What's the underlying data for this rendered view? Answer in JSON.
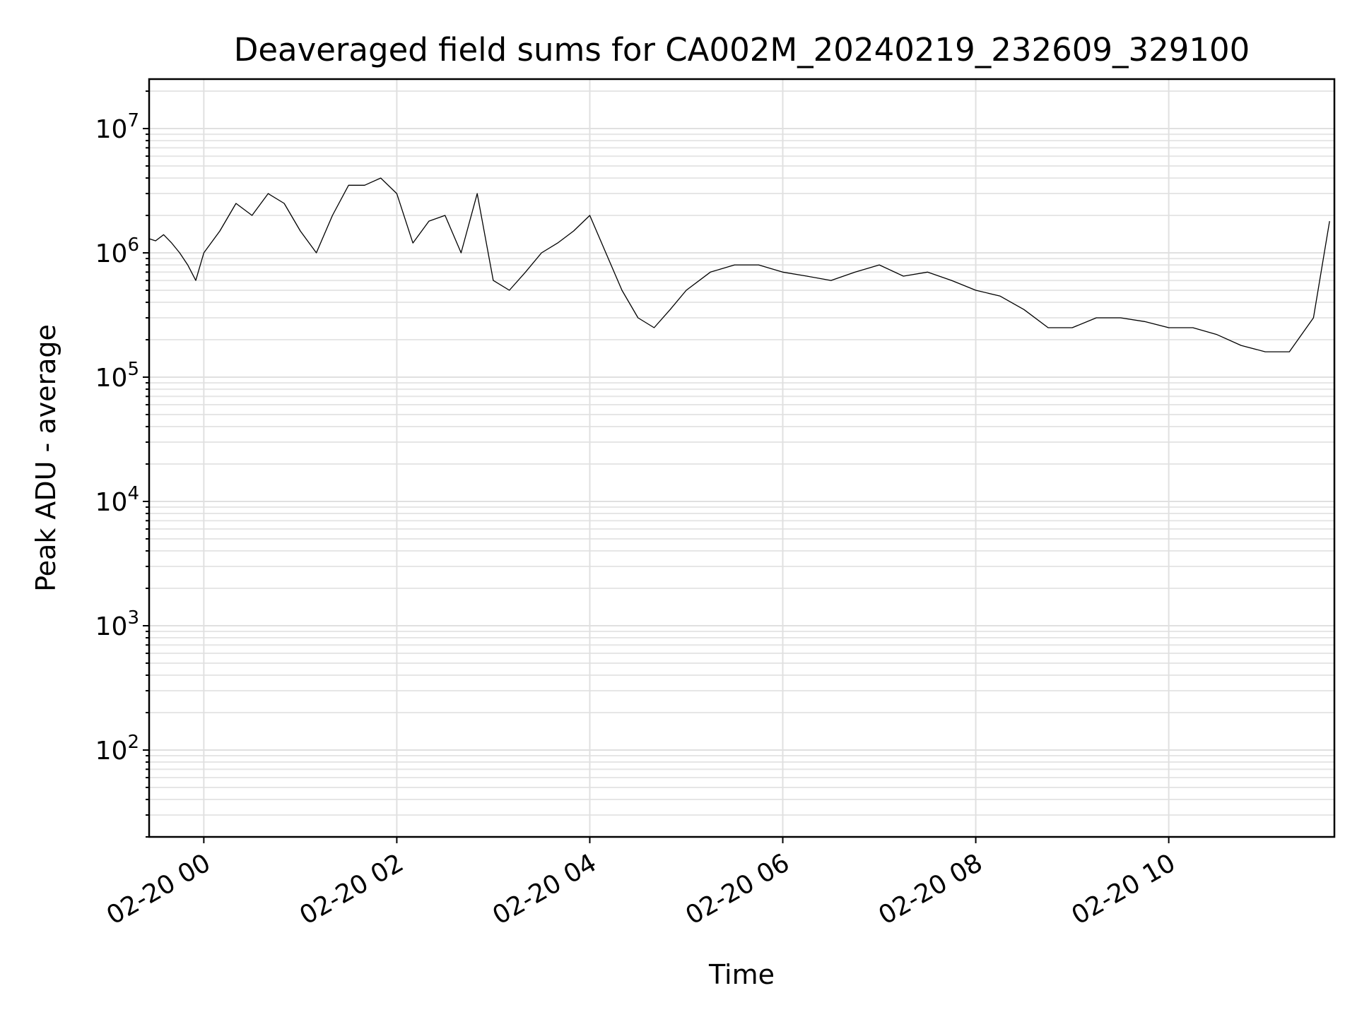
{
  "chart_data": {
    "type": "line",
    "title": "Deaveraged field sums for CA002M_20240219_232609_329100",
    "xlabel": "Time",
    "ylabel": "Peak ADU - average",
    "y_scale": "log",
    "ylim": [
      20,
      25000000
    ],
    "xlim": [
      "2024-02-19T23:26",
      "2024-02-20T11:43"
    ],
    "x_ticks": [
      {
        "value": "2024-02-20T00:00",
        "label": "02-20 00"
      },
      {
        "value": "2024-02-20T02:00",
        "label": "02-20 02"
      },
      {
        "value": "2024-02-20T04:00",
        "label": "02-20 04"
      },
      {
        "value": "2024-02-20T06:00",
        "label": "02-20 06"
      },
      {
        "value": "2024-02-20T08:00",
        "label": "02-20 08"
      },
      {
        "value": "2024-02-20T10:00",
        "label": "02-20 10"
      }
    ],
    "y_ticks": [
      {
        "value": 100,
        "base": "10",
        "exp": "2"
      },
      {
        "value": 1000,
        "base": "10",
        "exp": "3"
      },
      {
        "value": 10000,
        "base": "10",
        "exp": "4"
      },
      {
        "value": 100000,
        "base": "10",
        "exp": "5"
      },
      {
        "value": 1000000,
        "base": "10",
        "exp": "6"
      },
      {
        "value": 10000000,
        "base": "10",
        "exp": "7"
      }
    ],
    "grid": true,
    "line_color": "#000000",
    "series": [
      {
        "x": [
          "2024-02-19T23:26",
          "2024-02-19T23:30",
          "2024-02-19T23:35",
          "2024-02-19T23:40",
          "2024-02-19T23:45",
          "2024-02-19T23:50",
          "2024-02-19T23:55",
          "2024-02-20T00:00",
          "2024-02-20T00:10",
          "2024-02-20T00:20",
          "2024-02-20T00:30",
          "2024-02-20T00:40",
          "2024-02-20T00:50",
          "2024-02-20T01:00",
          "2024-02-20T01:10",
          "2024-02-20T01:20",
          "2024-02-20T01:30",
          "2024-02-20T01:40",
          "2024-02-20T01:50",
          "2024-02-20T02:00",
          "2024-02-20T02:10",
          "2024-02-20T02:20",
          "2024-02-20T02:30",
          "2024-02-20T02:40",
          "2024-02-20T02:50",
          "2024-02-20T03:00",
          "2024-02-20T03:10",
          "2024-02-20T03:20",
          "2024-02-20T03:30",
          "2024-02-20T03:40",
          "2024-02-20T03:50",
          "2024-02-20T04:00",
          "2024-02-20T04:10",
          "2024-02-20T04:20",
          "2024-02-20T04:30",
          "2024-02-20T04:40",
          "2024-02-20T04:50",
          "2024-02-20T05:00",
          "2024-02-20T05:15",
          "2024-02-20T05:30",
          "2024-02-20T05:45",
          "2024-02-20T06:00",
          "2024-02-20T06:15",
          "2024-02-20T06:30",
          "2024-02-20T06:45",
          "2024-02-20T07:00",
          "2024-02-20T07:15",
          "2024-02-20T07:30",
          "2024-02-20T07:45",
          "2024-02-20T08:00",
          "2024-02-20T08:15",
          "2024-02-20T08:30",
          "2024-02-20T08:45",
          "2024-02-20T09:00",
          "2024-02-20T09:15",
          "2024-02-20T09:30",
          "2024-02-20T09:45",
          "2024-02-20T10:00",
          "2024-02-20T10:15",
          "2024-02-20T10:30",
          "2024-02-20T10:45",
          "2024-02-20T11:00",
          "2024-02-20T11:15",
          "2024-02-20T11:30",
          "2024-02-20T11:40"
        ],
        "y": [
          1300000,
          1250000,
          1400000,
          1200000,
          1000000,
          800000,
          600000,
          1000000,
          1500000,
          2500000,
          2000000,
          3000000,
          2500000,
          1500000,
          1000000,
          2000000,
          3500000,
          3500000,
          4000000,
          3000000,
          1200000,
          1800000,
          2000000,
          1000000,
          3000000,
          600000,
          500000,
          700000,
          1000000,
          1200000,
          1500000,
          2000000,
          1000000,
          500000,
          300000,
          250000,
          350000,
          500000,
          700000,
          800000,
          800000,
          700000,
          650000,
          600000,
          700000,
          800000,
          650000,
          700000,
          600000,
          500000,
          450000,
          350000,
          250000,
          250000,
          300000,
          300000,
          280000,
          250000,
          250000,
          220000,
          180000,
          160000,
          160000,
          300000,
          1800000
        ]
      }
    ]
  }
}
